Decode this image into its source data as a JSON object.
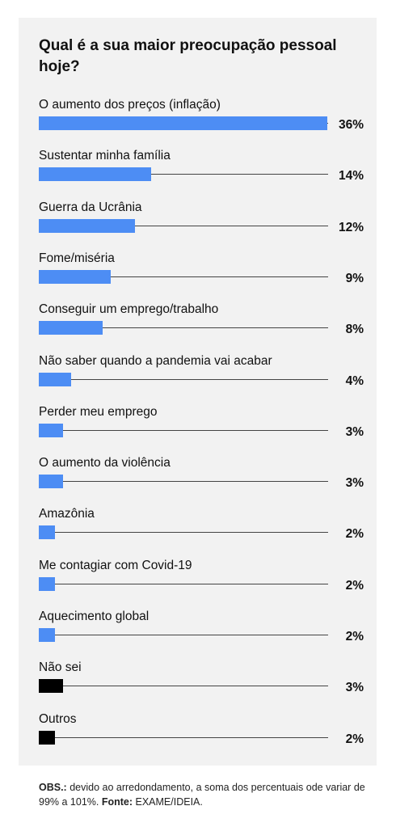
{
  "title": "Qual é a sua maior preocupação pessoal hoje?",
  "note": {
    "obs_label": "OBS.:",
    "obs_text": " devido ao arredondamento, a soma dos percentuais ode variar de 99% a 101%. ",
    "source_label": "Fonte:",
    "source_text": " EXAME/IDEIA."
  },
  "colors": {
    "primary": "#4d8df4",
    "secondary": "#000000",
    "background": "#f2f2f2"
  },
  "chart_data": {
    "type": "bar",
    "orientation": "horizontal",
    "title": "Qual é a sua maior preocupação pessoal hoje?",
    "categories": [
      "O aumento dos preços (inflação)",
      "Sustentar minha família",
      "Guerra da Ucrânia",
      "Fome/miséria",
      "Conseguir um emprego/trabalho",
      "Não saber quando a pandemia vai acabar",
      "Perder meu emprego",
      "O aumento da violência",
      "Amazônia",
      "Me contagiar com Covid-19",
      "Aquecimento global",
      "Não sei",
      "Outros"
    ],
    "values": [
      36,
      14,
      12,
      9,
      8,
      4,
      3,
      3,
      2,
      2,
      2,
      3,
      2
    ],
    "value_labels": [
      "36%",
      "14%",
      "12%",
      "9%",
      "8%",
      "4%",
      "3%",
      "3%",
      "2%",
      "2%",
      "2%",
      "3%",
      "2%"
    ],
    "bar_colors": [
      "#4d8df4",
      "#4d8df4",
      "#4d8df4",
      "#4d8df4",
      "#4d8df4",
      "#4d8df4",
      "#4d8df4",
      "#4d8df4",
      "#4d8df4",
      "#4d8df4",
      "#4d8df4",
      "#000000",
      "#000000"
    ],
    "unit": "%"
  }
}
